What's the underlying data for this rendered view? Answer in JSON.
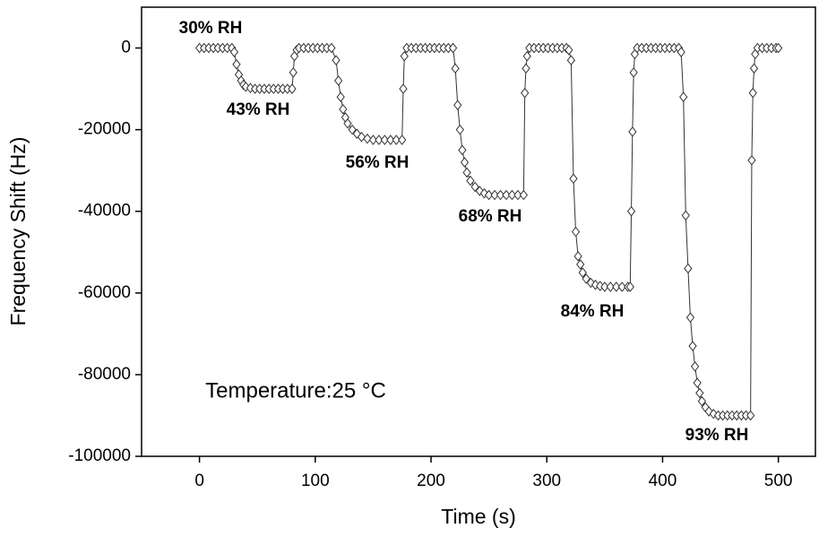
{
  "chart_data": {
    "type": "line",
    "x_label": "Time (s)",
    "y_label": "Frequency Shift (Hz)",
    "annotations": [
      "30% RH",
      "43% RH",
      "56% RH",
      "68% RH",
      "84% RH",
      "93% RH",
      "Temperature:25 °C"
    ],
    "xlim": [
      -50,
      532
    ],
    "ylim": [
      -100000,
      10000
    ],
    "xticks": [
      0,
      100,
      200,
      300,
      400,
      500
    ],
    "yticks": [
      0,
      -20000,
      -40000,
      -60000,
      -80000,
      -100000
    ],
    "series": [
      {
        "color": "#333333",
        "x": [
          0,
          4,
          8,
          12,
          16,
          20,
          24,
          28,
          30,
          32,
          34,
          36,
          38,
          40,
          44,
          48,
          52,
          56,
          60,
          64,
          68,
          72,
          76,
          80,
          81,
          82,
          84,
          86,
          90,
          94,
          98,
          102,
          106,
          110,
          114,
          118,
          120,
          122,
          124,
          126,
          128,
          132,
          136,
          140,
          145,
          150,
          155,
          160,
          165,
          170,
          175,
          176,
          177,
          179,
          183,
          187,
          191,
          195,
          199,
          203,
          207,
          211,
          215,
          219,
          221,
          223,
          225,
          227,
          229,
          231,
          234,
          238,
          242,
          246,
          250,
          255,
          260,
          265,
          270,
          275,
          280,
          281,
          282,
          283,
          285,
          289,
          293,
          297,
          301,
          305,
          309,
          313,
          317,
          319,
          321,
          323,
          325,
          327,
          329,
          331,
          334,
          338,
          342,
          346,
          350,
          355,
          360,
          365,
          370,
          372,
          373,
          374,
          375,
          376,
          378,
          382,
          386,
          390,
          394,
          398,
          402,
          406,
          410,
          414,
          416,
          418,
          420,
          422,
          424,
          426,
          428,
          430,
          432,
          434,
          437,
          440,
          444,
          448,
          452,
          456,
          460,
          464,
          468,
          472,
          476,
          477,
          478,
          479,
          480,
          482,
          486,
          490,
          494,
          498,
          500
        ],
        "values": [
          0,
          0,
          0,
          0,
          0,
          0,
          0,
          0,
          -1000,
          -4000,
          -6500,
          -8000,
          -9000,
          -9500,
          -9800,
          -10000,
          -10000,
          -10000,
          -10000,
          -10000,
          -10000,
          -10000,
          -10000,
          -10000,
          -6000,
          -2000,
          -500,
          0,
          0,
          0,
          0,
          0,
          0,
          0,
          0,
          -3000,
          -8000,
          -12000,
          -15000,
          -17000,
          -18500,
          -20000,
          -21000,
          -21800,
          -22200,
          -22500,
          -22500,
          -22500,
          -22500,
          -22500,
          -22500,
          -10000,
          -2000,
          0,
          0,
          0,
          0,
          0,
          0,
          0,
          0,
          0,
          0,
          0,
          -5000,
          -14000,
          -20000,
          -25000,
          -28000,
          -30500,
          -32500,
          -34000,
          -35000,
          -35600,
          -36000,
          -36000,
          -36000,
          -36000,
          -36000,
          -36000,
          -36000,
          -11000,
          -5000,
          -2000,
          0,
          0,
          0,
          0,
          0,
          0,
          0,
          0,
          0,
          -500,
          -3000,
          -32000,
          -45000,
          -51000,
          -53000,
          -55000,
          -56500,
          -57500,
          -58000,
          -58300,
          -58500,
          -58500,
          -58500,
          -58500,
          -58500,
          -58500,
          -40000,
          -20500,
          -6000,
          -1500,
          0,
          0,
          0,
          0,
          0,
          0,
          0,
          0,
          0,
          0,
          -1000,
          -12000,
          -41000,
          -54000,
          -66000,
          -73000,
          -78000,
          -82000,
          -84500,
          -86500,
          -88000,
          -89000,
          -89600,
          -90000,
          -90000,
          -90000,
          -90000,
          -90000,
          -90000,
          -90000,
          -90000,
          -27500,
          -11000,
          -5000,
          -1500,
          0,
          0,
          0,
          0,
          0,
          0
        ]
      }
    ]
  }
}
